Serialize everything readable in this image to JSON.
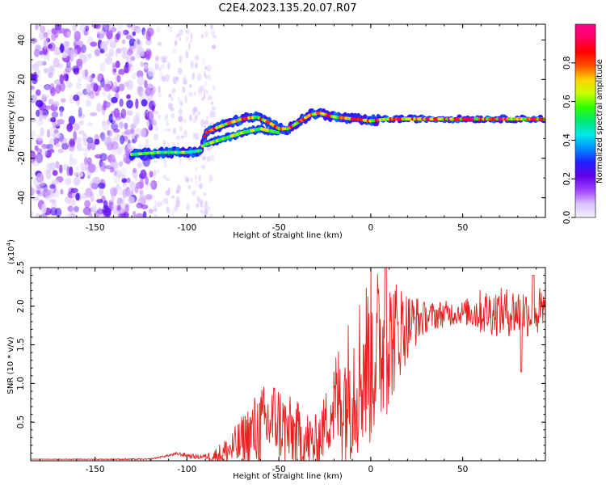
{
  "figure": {
    "title": "C2E4.2023.135.20.07.R07"
  },
  "chart_data": [
    {
      "type": "heatmap",
      "name": "spectrogram",
      "xlabel": "Height of straight line (km)",
      "ylabel": "Frequency (Hz)",
      "xlim": [
        -185,
        95
      ],
      "ylim": [
        -50,
        48
      ],
      "xticks": [
        -150,
        -100,
        -50,
        0,
        50
      ],
      "yticks": [
        -40,
        -20,
        0,
        20,
        40
      ],
      "ridge": {
        "x": [
          -130,
          -115,
          -100,
          -92,
          -90,
          -80,
          -70,
          -62,
          -55,
          -50,
          -45,
          -40,
          -33,
          -28,
          -20,
          -10,
          0,
          10,
          20,
          40,
          60,
          80,
          95
        ],
        "y": [
          -18,
          -17,
          -17,
          -16,
          -7,
          -3,
          0,
          1,
          -2,
          -5,
          -5,
          -2,
          2,
          3,
          1,
          0,
          -1,
          0,
          0,
          0,
          0,
          0,
          0
        ]
      },
      "secondary_ridge": {
        "x": [
          -90,
          -80,
          -70,
          -60,
          -55,
          -50
        ],
        "y": [
          -13,
          -10,
          -7,
          -5,
          -6,
          -7
        ]
      },
      "noise_region_x": [
        -185,
        -118
      ],
      "colorbar": {
        "label": "Normalized spectral amplitude",
        "range": [
          0,
          1
        ],
        "ticks": [
          "0.0",
          "0.2",
          "0.4",
          "0.6",
          "0.8"
        ],
        "colors": [
          "#f2f0ff",
          "#d9c0ff",
          "#a040ff",
          "#6000e8",
          "#2020ff",
          "#0090ff",
          "#00e8e8",
          "#00e870",
          "#30ff00",
          "#c8ff00",
          "#ffd000",
          "#ff5000",
          "#ff0000",
          "#ff0060",
          "#ff0090"
        ]
      }
    },
    {
      "type": "line",
      "name": "snr",
      "xlabel": "Height of straight line (km)",
      "ylabel": "SNR (10 * v/v)",
      "y_multiplier_label": "(x10",
      "y_multiplier_exp": "4",
      "y_multiplier_close": ")",
      "xlim": [
        -185,
        95
      ],
      "ylim": [
        0,
        2.5
      ],
      "xticks": [
        -150,
        -100,
        -50,
        0,
        50
      ],
      "yticks": [
        "0.5",
        "1.0",
        "1.5",
        "2.0",
        "2.5"
      ],
      "line_color": "#e82020",
      "envelope": {
        "x": [
          -185,
          -120,
          -112,
          -105,
          -95,
          -85,
          -80,
          -72,
          -65,
          -58,
          -52,
          -48,
          -45,
          -42,
          -38,
          -33,
          -30,
          -26,
          -22,
          -18,
          -14,
          -10,
          -6,
          -3,
          0,
          4,
          8,
          12,
          16,
          20,
          25,
          30,
          35,
          40,
          50,
          60,
          70,
          80,
          90,
          95
        ],
        "y": [
          0.02,
          0.02,
          0.06,
          0.09,
          0.05,
          0.06,
          0.1,
          0.2,
          0.35,
          0.45,
          0.55,
          0.45,
          0.35,
          0.35,
          0.28,
          0.22,
          0.2,
          0.4,
          0.65,
          0.78,
          0.85,
          1.0,
          1.15,
          1.25,
          1.35,
          1.45,
          1.5,
          1.6,
          1.7,
          1.75,
          1.82,
          1.85,
          1.88,
          1.9,
          1.92,
          1.93,
          1.92,
          1.93,
          1.92,
          1.9
        ]
      },
      "noise_amp": {
        "x": [
          -185,
          -115,
          -100,
          -90,
          -75,
          -60,
          -45,
          -30,
          -25,
          -15,
          0,
          10,
          20,
          30,
          50,
          60,
          95
        ],
        "y": [
          0.0,
          0.01,
          0.03,
          0.03,
          0.25,
          0.55,
          0.5,
          0.4,
          0.4,
          0.9,
          1.2,
          0.9,
          0.45,
          0.2,
          0.15,
          0.3,
          0.35
        ]
      }
    }
  ]
}
